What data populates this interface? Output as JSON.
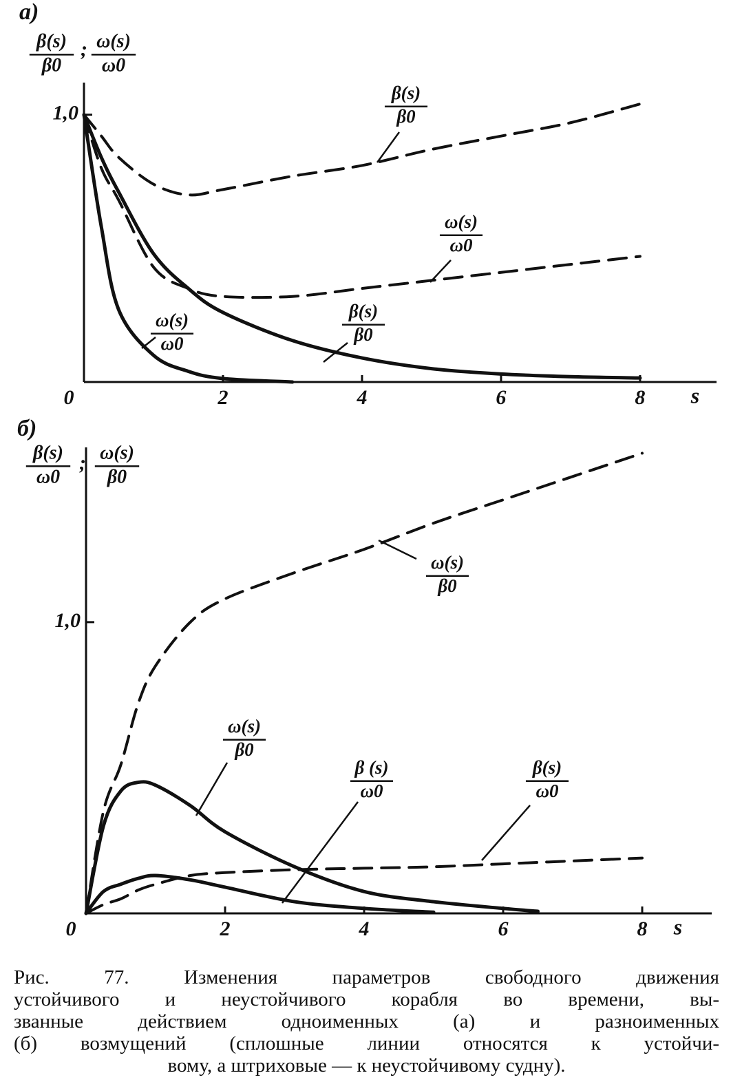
{
  "chart_data": [
    {
      "type": "line",
      "panel": "а)",
      "ylabel": [
        {
          "num": "β(s)",
          "den": "β0"
        },
        {
          "num": "ω(s)",
          "den": "ω0"
        }
      ],
      "ylabel_sep": ";",
      "xlabel": "s",
      "x": [
        0,
        0.25,
        0.5,
        1,
        1.5,
        2,
        3,
        4,
        5,
        6,
        7,
        8
      ],
      "xlim": [
        0,
        9.1
      ],
      "ylim": [
        0,
        1.12
      ],
      "xticks": [
        0,
        2,
        4,
        6,
        8
      ],
      "yticks": [
        {
          "value": 1,
          "label": "1,0"
        }
      ],
      "series": [
        {
          "label": {
            "num": "β(s)",
            "den": "β0"
          },
          "style": "dashed",
          "color": "#111",
          "values": [
            1.0,
            0.92,
            0.84,
            0.74,
            0.7,
            0.72,
            0.77,
            0.81,
            0.87,
            0.92,
            0.97,
            1.04
          ]
        },
        {
          "label": {
            "num": "ω(s)",
            "den": "ω0"
          },
          "style": "dashed",
          "color": "#111",
          "values": [
            1.0,
            0.8,
            0.68,
            0.43,
            0.35,
            0.32,
            0.32,
            0.35,
            0.38,
            0.41,
            0.44,
            0.47
          ]
        },
        {
          "label": {
            "num": "β(s)",
            "den": "β0"
          },
          "style": "solid",
          "color": "#111",
          "values": [
            1.0,
            0.84,
            0.71,
            0.48,
            0.35,
            0.26,
            0.155,
            0.09,
            0.05,
            0.03,
            0.02,
            0.015
          ]
        },
        {
          "label": {
            "num": "ω(s)",
            "den": "ω0"
          },
          "style": "solid",
          "color": "#111",
          "values": [
            1.0,
            0.58,
            0.27,
            0.1,
            0.04,
            0.013,
            0.0,
            null,
            null,
            null,
            null,
            null
          ]
        }
      ]
    },
    {
      "type": "line",
      "panel": "б)",
      "ylabel": [
        {
          "num": "β(s)",
          "den": "ω0"
        },
        {
          "num": "ω(s)",
          "den": "β0"
        }
      ],
      "ylabel_sep": ";",
      "xlabel": "s",
      "x": [
        0,
        0.25,
        0.5,
        0.75,
        1,
        1.5,
        2,
        3,
        4,
        5,
        6,
        6.5,
        7,
        8
      ],
      "xlim": [
        0,
        9.0
      ],
      "ylim": [
        0,
        1.6
      ],
      "xticks": [
        0,
        2,
        4,
        6,
        8
      ],
      "yticks": [
        {
          "value": 1,
          "label": "1,0"
        }
      ],
      "series": [
        {
          "label": {
            "num": "ω(s)",
            "den": "β0"
          },
          "style": "dashed",
          "color": "#111",
          "values": [
            0,
            0.35,
            0.51,
            0.72,
            0.85,
            1.0,
            1.08,
            1.17,
            1.25,
            1.34,
            1.42,
            1.46,
            1.5,
            1.58
          ]
        },
        {
          "label": {
            "num": "ω(s)",
            "den": "β0"
          },
          "style": "solid",
          "color": "#111",
          "values": [
            0,
            0.3,
            0.42,
            0.45,
            0.44,
            0.37,
            0.28,
            0.16,
            0.075,
            0.04,
            0.017,
            0.007,
            null,
            null
          ]
        },
        {
          "label": {
            "num": "β (s)",
            "den": "ω0"
          },
          "style": "solid",
          "color": "#111",
          "values": [
            0,
            0.075,
            0.1,
            0.12,
            0.13,
            0.115,
            0.09,
            0.04,
            0.017,
            0.004,
            null,
            null,
            null,
            null
          ]
        },
        {
          "label": {
            "num": "β(s)",
            "den": "ω0"
          },
          "style": "dashed",
          "color": "#111",
          "values": [
            0,
            0.03,
            0.05,
            0.08,
            0.1,
            0.13,
            0.14,
            0.15,
            0.155,
            0.16,
            0.17,
            0.175,
            0.18,
            0.19
          ]
        }
      ]
    }
  ],
  "caption": [
    "Рис. 77. Изменения параметров свободного движения",
    "устойчивого и неустойчивого корабля во времени, вы-",
    "званные действием одноименных (а) и разноименных",
    "(б) возмущений (сплошные линии относятся к устойчи-",
    "вому, а штриховые — к неустойчивому судну)."
  ]
}
